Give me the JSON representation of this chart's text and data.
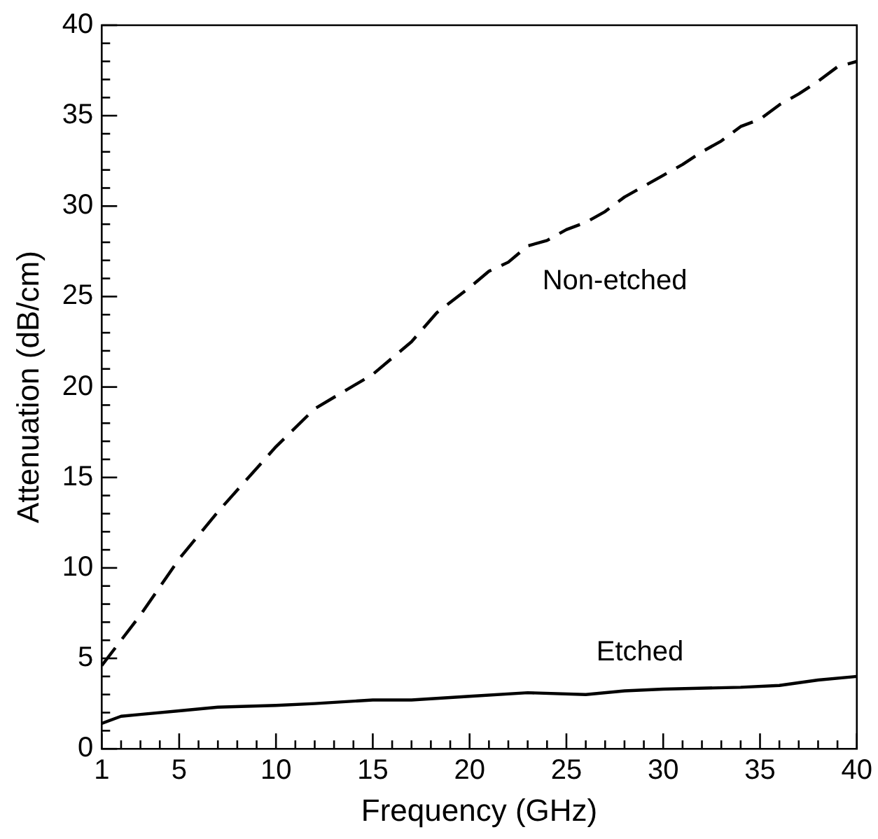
{
  "chart_data": {
    "type": "line",
    "xlabel": "Frequency (GHz)",
    "ylabel": "Attenuation (dB/cm)",
    "xlim": [
      1,
      40
    ],
    "ylim": [
      0,
      40
    ],
    "xticks": [
      1,
      {
        "value": 2,
        "label": null
      },
      {
        "value": 3,
        "label": null
      },
      {
        "value": 4,
        "label": null
      },
      5,
      {
        "value": 6,
        "label": null
      },
      {
        "value": 7,
        "label": null
      },
      {
        "value": 8,
        "label": null
      },
      {
        "value": 9,
        "label": null
      },
      10,
      {
        "value": 11,
        "label": null
      },
      {
        "value": 12,
        "label": null
      },
      {
        "value": 13,
        "label": null
      },
      {
        "value": 14,
        "label": null
      },
      15,
      {
        "value": 16,
        "label": null
      },
      {
        "value": 17,
        "label": null
      },
      {
        "value": 18,
        "label": null
      },
      {
        "value": 19,
        "label": null
      },
      20,
      {
        "value": 21,
        "label": null
      },
      {
        "value": 22,
        "label": null
      },
      {
        "value": 23,
        "label": null
      },
      {
        "value": 24,
        "label": null
      },
      25,
      {
        "value": 26,
        "label": null
      },
      {
        "value": 27,
        "label": null
      },
      {
        "value": 28,
        "label": null
      },
      {
        "value": 29,
        "label": null
      },
      30,
      {
        "value": 31,
        "label": null
      },
      {
        "value": 32,
        "label": null
      },
      {
        "value": 33,
        "label": null
      },
      {
        "value": 34,
        "label": null
      },
      35,
      {
        "value": 36,
        "label": null
      },
      {
        "value": 37,
        "label": null
      },
      {
        "value": 38,
        "label": null
      },
      {
        "value": 39,
        "label": null
      },
      40
    ],
    "yticks": [
      0,
      {
        "value": 1,
        "label": null
      },
      {
        "value": 2,
        "label": null
      },
      {
        "value": 3,
        "label": null
      },
      {
        "value": 4,
        "label": null
      },
      5,
      {
        "value": 6,
        "label": null
      },
      {
        "value": 7,
        "label": null
      },
      {
        "value": 8,
        "label": null
      },
      {
        "value": 9,
        "label": null
      },
      10,
      {
        "value": 11,
        "label": null
      },
      {
        "value": 12,
        "label": null
      },
      {
        "value": 13,
        "label": null
      },
      {
        "value": 14,
        "label": null
      },
      15,
      {
        "value": 16,
        "label": null
      },
      {
        "value": 17,
        "label": null
      },
      {
        "value": 18,
        "label": null
      },
      {
        "value": 19,
        "label": null
      },
      20,
      {
        "value": 21,
        "label": null
      },
      {
        "value": 22,
        "label": null
      },
      {
        "value": 23,
        "label": null
      },
      {
        "value": 24,
        "label": null
      },
      25,
      {
        "value": 26,
        "label": null
      },
      {
        "value": 27,
        "label": null
      },
      {
        "value": 28,
        "label": null
      },
      {
        "value": 29,
        "label": null
      },
      30,
      {
        "value": 31,
        "label": null
      },
      {
        "value": 32,
        "label": null
      },
      {
        "value": 33,
        "label": null
      },
      {
        "value": 34,
        "label": null
      },
      35,
      {
        "value": 36,
        "label": null
      },
      {
        "value": 37,
        "label": null
      },
      {
        "value": 38,
        "label": null
      },
      {
        "value": 39,
        "label": null
      },
      40
    ],
    "grid": false,
    "legend": false,
    "marker": "none",
    "series": [
      {
        "name": "Non-etched",
        "color": "#000000",
        "line_style": "dashed",
        "x": [
          1,
          3,
          5,
          7,
          10,
          12,
          15,
          17,
          18.3,
          20,
          21,
          22,
          23,
          24,
          25,
          26,
          27,
          28,
          29,
          30,
          31,
          32,
          33,
          34,
          35,
          36,
          37,
          38,
          39,
          40
        ],
        "values": [
          4.6,
          7.4,
          10.5,
          13.1,
          16.7,
          18.8,
          20.7,
          22.5,
          24.1,
          25.5,
          26.4,
          26.9,
          27.8,
          28.1,
          28.7,
          29.1,
          29.7,
          30.5,
          31.1,
          31.7,
          32.3,
          33.0,
          33.6,
          34.4,
          34.8,
          35.6,
          36.2,
          36.9,
          37.7,
          38.0
        ]
      },
      {
        "name": "Etched",
        "color": "#000000",
        "line_style": "solid",
        "x": [
          1,
          2,
          3,
          5,
          7,
          10,
          12,
          15,
          17,
          20,
          23,
          26,
          28,
          30,
          34,
          36,
          38,
          40
        ],
        "values": [
          1.4,
          1.8,
          1.9,
          2.1,
          2.3,
          2.4,
          2.5,
          2.7,
          2.7,
          2.9,
          3.1,
          3.0,
          3.2,
          3.3,
          3.4,
          3.5,
          3.8,
          4.0
        ]
      }
    ]
  }
}
